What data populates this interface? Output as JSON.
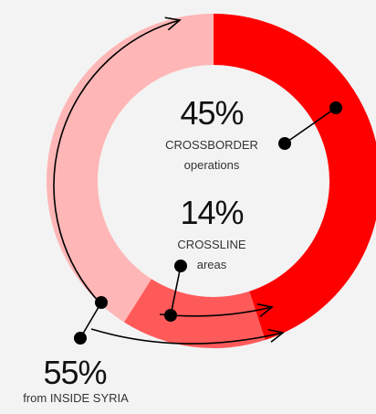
{
  "chart_data": {
    "type": "donut",
    "segments": [
      {
        "label": "CROSSBORDER operations",
        "value": 45,
        "color": "#ff0000"
      },
      {
        "label": "CROSSLINE areas",
        "value": 14,
        "color": "#ff5a5a"
      },
      {
        "label": "from INSIDE SYRIA",
        "value": 41,
        "color": "#ffb6b6"
      }
    ],
    "annotations": {
      "crossborder": {
        "percent": "45%",
        "line1": "CROSSBORDER",
        "line2": "operations"
      },
      "crossline": {
        "percent": "14%",
        "line1": "CROSSLINE",
        "line2": "areas"
      },
      "inside": {
        "percent": "55%",
        "line1": "from INSIDE SYRIA"
      }
    }
  }
}
